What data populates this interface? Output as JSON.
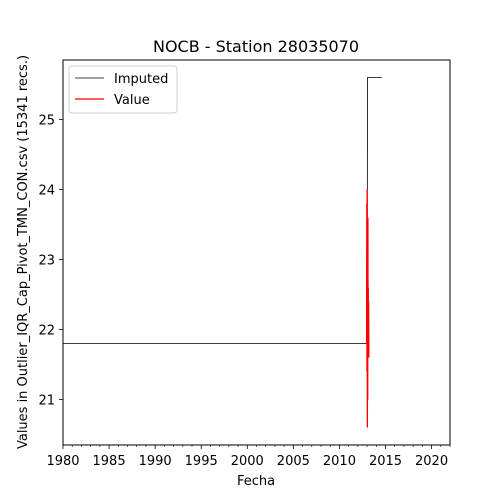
{
  "chart_data": {
    "type": "line",
    "title": "NOCB - Station 28035070",
    "xlabel": "Fecha",
    "ylabel": "Values in Outlier_IQR_Cap_Pivot_TMN_CON.csv (15341 recs.)",
    "xlim": [
      1980,
      2022
    ],
    "ylim": [
      20.35,
      25.85
    ],
    "x_ticks": [
      1980,
      1985,
      1990,
      1995,
      2000,
      2005,
      2010,
      2015,
      2020
    ],
    "y_ticks": [
      21,
      22,
      23,
      24,
      25
    ],
    "legend_position": "upper-left",
    "grid": false,
    "series": [
      {
        "name": "Imputed",
        "color": "#000000",
        "points": [
          [
            1980,
            21.8
          ],
          [
            2013.0,
            21.8
          ],
          [
            2013.05,
            25.6
          ],
          [
            2014.6,
            25.6
          ]
        ]
      },
      {
        "name": "Value",
        "color": "#ff0000",
        "points": [
          [
            2012.95,
            21.8
          ],
          [
            2012.97,
            23.8
          ],
          [
            2012.99,
            21.4
          ],
          [
            2013.01,
            24.0
          ],
          [
            2013.03,
            20.6
          ],
          [
            2013.05,
            23.2
          ],
          [
            2013.07,
            21.0
          ],
          [
            2013.09,
            23.6
          ],
          [
            2013.11,
            21.6
          ],
          [
            2013.13,
            22.6
          ],
          [
            2013.15,
            21.7
          ],
          [
            2013.17,
            22.4
          ],
          [
            2013.19,
            21.6
          ]
        ]
      }
    ]
  }
}
